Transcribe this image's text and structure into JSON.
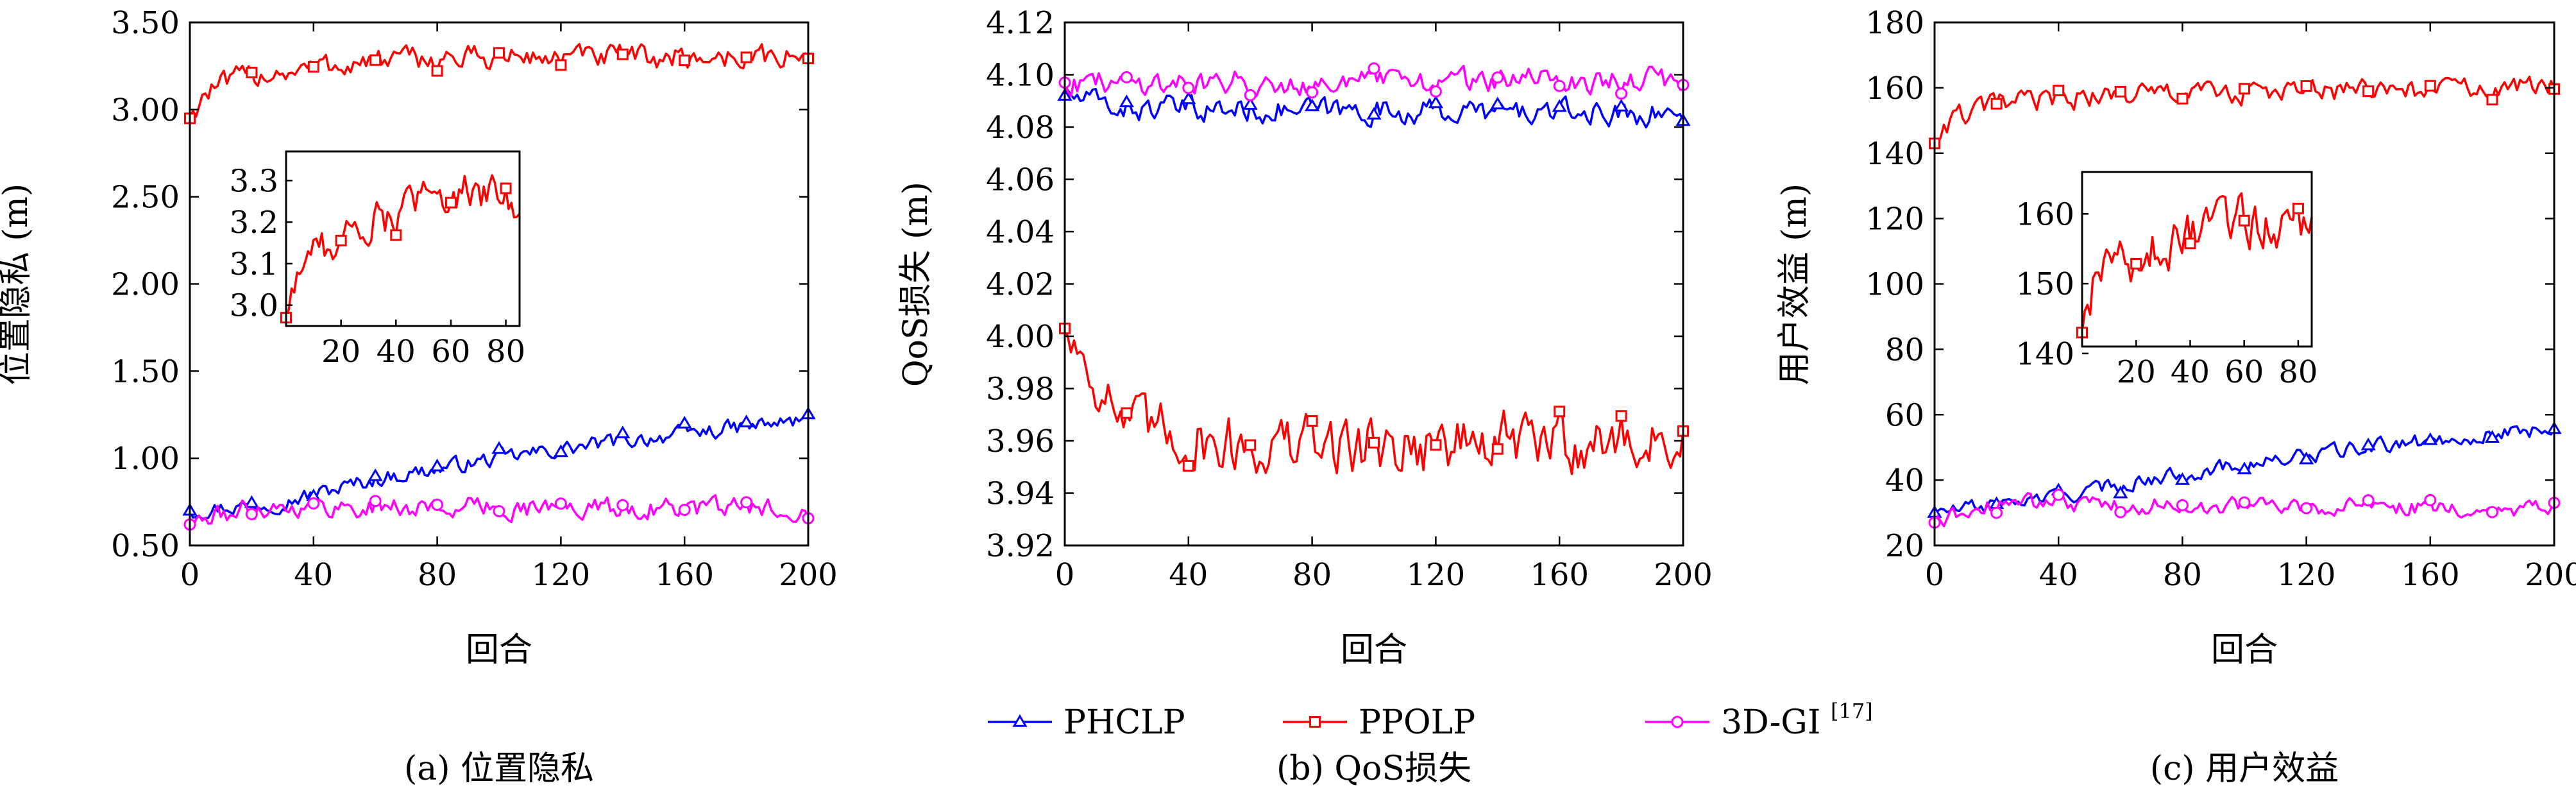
{
  "colors": {
    "PHCLP": "#0000ff",
    "PPOLP": "#ff0000",
    "3D-GI": "#ff00ff"
  },
  "legend": {
    "items": [
      {
        "series": "PHCLP",
        "label": "PHCLP",
        "marker": "triangle"
      },
      {
        "series": "PPOLP",
        "label": "PPOLP",
        "marker": "square"
      },
      {
        "series": "3D-GI",
        "label": "3D-GI",
        "sup": "[17]",
        "marker": "circle"
      }
    ]
  },
  "chart_data": [
    {
      "id": "a",
      "type": "line",
      "caption": "(a) 位置隐私",
      "xlabel": "回合",
      "ylabel": "位置隐私 (m)",
      "xlim": [
        0,
        200
      ],
      "ylim": [
        0.5,
        3.5
      ],
      "xticks": [
        0,
        40,
        80,
        120,
        160,
        200
      ],
      "yticks": [
        "0.50",
        "1.00",
        "1.50",
        "2.00",
        "2.50",
        "3.00",
        "3.50"
      ],
      "series": [
        {
          "name": "PHCLP",
          "base": [
            [
              0,
              0.7
            ],
            [
              30,
              0.75
            ],
            [
              60,
              0.88
            ],
            [
              100,
              1.0
            ],
            [
              140,
              1.1
            ],
            [
              200,
              1.22
            ]
          ],
          "amp": 0.04,
          "markers": [
            0,
            20,
            40,
            60,
            80,
            100,
            120,
            140,
            160,
            180,
            200
          ]
        },
        {
          "name": "PPOLP",
          "base": [
            [
              0,
              2.95
            ],
            [
              5,
              3.1
            ],
            [
              20,
              3.2
            ],
            [
              60,
              3.28
            ],
            [
              100,
              3.3
            ],
            [
              200,
              3.3
            ]
          ],
          "amp": 0.06,
          "markers": [
            0,
            20,
            40,
            60,
            80,
            100,
            120,
            140,
            160,
            180,
            200
          ]
        },
        {
          "name": "3D-GI",
          "base": [
            [
              0,
              0.62
            ],
            [
              20,
              0.72
            ],
            [
              60,
              0.72
            ],
            [
              200,
              0.71
            ]
          ],
          "amp": 0.05,
          "markers": [
            0,
            20,
            40,
            60,
            80,
            100,
            120,
            140,
            160,
            180,
            200
          ]
        }
      ],
      "inset": {
        "series": "PPOLP",
        "xlim": [
          0,
          85
        ],
        "ylim": [
          2.95,
          3.37
        ],
        "xticks": [
          20,
          40,
          60,
          80
        ],
        "yticks": [
          "3.0",
          "3.1",
          "3.2",
          "3.3"
        ],
        "base": [
          [
            0,
            2.97
          ],
          [
            5,
            3.1
          ],
          [
            20,
            3.17
          ],
          [
            40,
            3.22
          ],
          [
            60,
            3.28
          ],
          [
            85,
            3.25
          ]
        ],
        "amp": 0.04
      }
    },
    {
      "id": "b",
      "type": "line",
      "caption": "(b) QoS损失",
      "xlabel": "回合",
      "ylabel": "QoS损失 (m)",
      "xlim": [
        0,
        200
      ],
      "ylim": [
        3.92,
        4.12
      ],
      "xticks": [
        0,
        40,
        80,
        120,
        160,
        200
      ],
      "yticks": [
        "3.92",
        "3.94",
        "3.96",
        "3.98",
        "4.00",
        "4.02",
        "4.04",
        "4.06",
        "4.08",
        "4.10",
        "4.12"
      ],
      "series": [
        {
          "name": "PHCLP",
          "base": [
            [
              0,
              4.092
            ],
            [
              20,
              4.087
            ],
            [
              200,
              4.085
            ]
          ],
          "amp": 0.004,
          "markers": [
            0,
            20,
            40,
            60,
            80,
            100,
            120,
            140,
            160,
            180,
            200
          ]
        },
        {
          "name": "PPOLP",
          "base": [
            [
              0,
              4.003
            ],
            [
              10,
              3.985
            ],
            [
              20,
              3.965
            ],
            [
              60,
              3.958
            ],
            [
              200,
              3.96
            ]
          ],
          "amp": 0.01,
          "markers": [
            0,
            20,
            40,
            60,
            80,
            100,
            120,
            140,
            160,
            180,
            200
          ]
        },
        {
          "name": "3D-GI",
          "base": [
            [
              0,
              4.097
            ],
            [
              200,
              4.098
            ]
          ],
          "amp": 0.004,
          "markers": [
            0,
            20,
            40,
            60,
            80,
            100,
            120,
            140,
            160,
            180,
            200
          ]
        }
      ]
    },
    {
      "id": "c",
      "type": "line",
      "caption": "(c) 用户效益",
      "xlabel": "回合",
      "ylabel": "用户效益 (m)",
      "xlim": [
        0,
        200
      ],
      "ylim": [
        20,
        180
      ],
      "xticks": [
        0,
        40,
        80,
        120,
        160,
        200
      ],
      "yticks": [
        "20",
        "40",
        "60",
        "80",
        "100",
        "120",
        "140",
        "160",
        "180"
      ],
      "series": [
        {
          "name": "PHCLP",
          "base": [
            [
              0,
              30
            ],
            [
              40,
              35
            ],
            [
              80,
              42
            ],
            [
              140,
              50
            ],
            [
              200,
              56
            ]
          ],
          "amp": 2.0,
          "markers": [
            0,
            20,
            40,
            60,
            80,
            100,
            120,
            140,
            160,
            180,
            200
          ]
        },
        {
          "name": "PPOLP",
          "base": [
            [
              0,
              143
            ],
            [
              5,
              150
            ],
            [
              20,
              155
            ],
            [
              60,
              158
            ],
            [
              200,
              160
            ]
          ],
          "amp": 3.0,
          "markers": [
            0,
            20,
            40,
            60,
            80,
            100,
            120,
            140,
            160,
            180,
            200
          ]
        },
        {
          "name": "3D-GI",
          "base": [
            [
              0,
              27
            ],
            [
              20,
              33
            ],
            [
              200,
              31
            ]
          ],
          "amp": 2.2,
          "markers": [
            0,
            20,
            40,
            60,
            80,
            100,
            120,
            140,
            160,
            180,
            200
          ]
        }
      ],
      "inset": {
        "series": "PPOLP",
        "xlim": [
          0,
          85
        ],
        "ylim": [
          141,
          166
        ],
        "xticks": [
          20,
          40,
          60,
          80
        ],
        "yticks": [
          "140",
          "150",
          "160"
        ],
        "base": [
          [
            0,
            143
          ],
          [
            5,
            150
          ],
          [
            20,
            154
          ],
          [
            40,
            157
          ],
          [
            60,
            159
          ],
          [
            85,
            158
          ]
        ],
        "amp": 3.0
      }
    }
  ]
}
